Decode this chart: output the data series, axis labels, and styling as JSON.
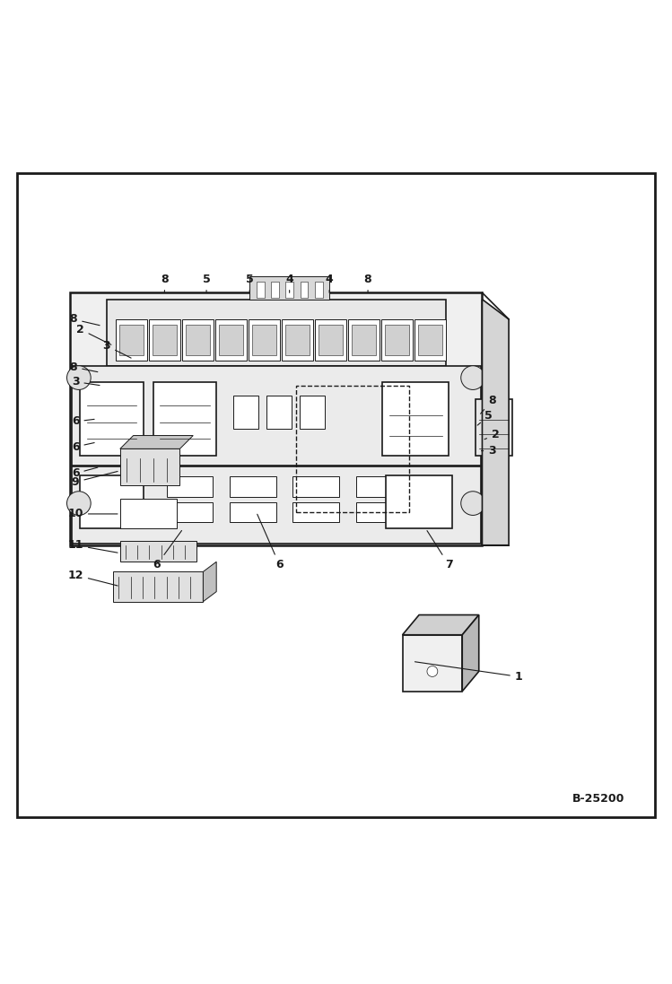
{
  "figure_width": 7.49,
  "figure_height": 10.97,
  "dpi": 100,
  "bg_color": "#ffffff",
  "drawing_color": "#1a1a1a",
  "code": "B-25200"
}
